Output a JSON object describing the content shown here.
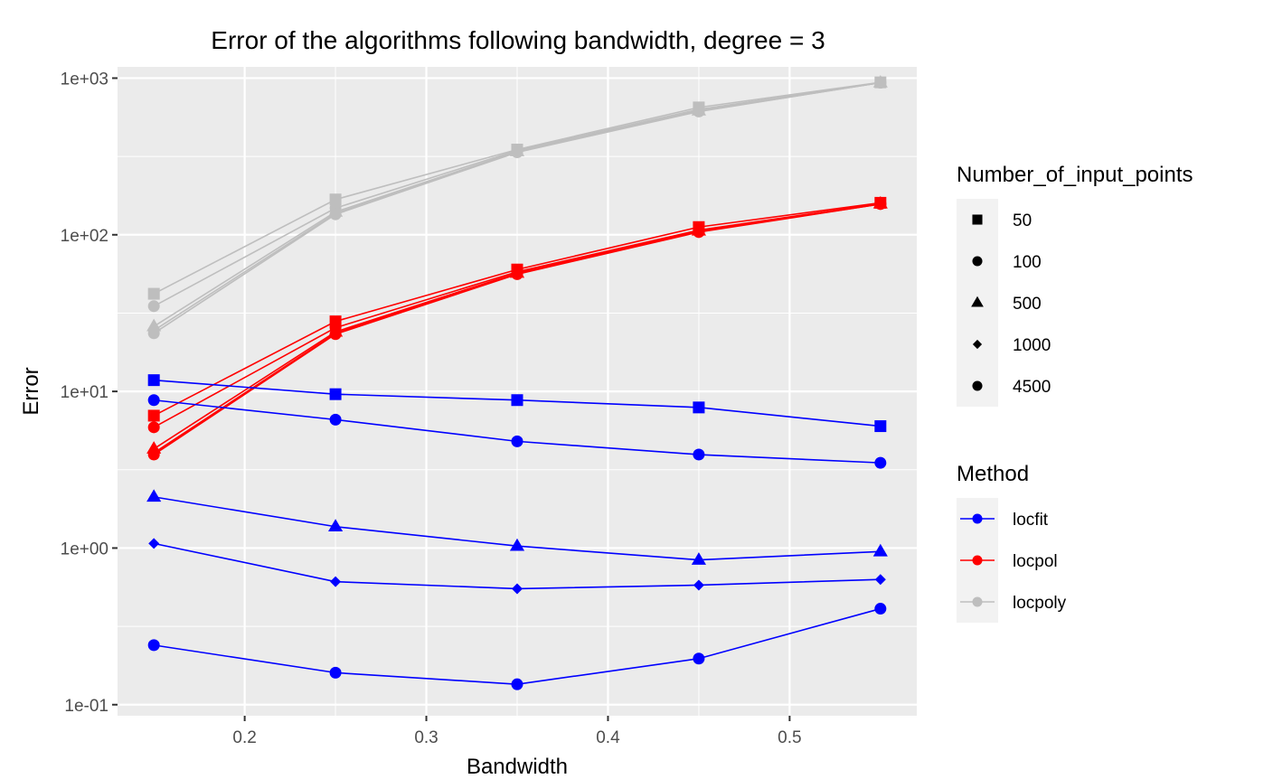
{
  "chart_data": {
    "type": "line",
    "title": "Error of the algorithms following bandwidth, degree = 3",
    "xlabel": "Bandwidth",
    "ylabel": "Error",
    "xlim": [
      0.13,
      0.57
    ],
    "ylim": [
      0.085,
      1180
    ],
    "y_scale": "log10",
    "grid": true,
    "legend_position": "right",
    "x_ticks": [
      {
        "value": 0.2,
        "label": "0.2"
      },
      {
        "value": 0.3,
        "label": "0.3"
      },
      {
        "value": 0.4,
        "label": "0.4"
      },
      {
        "value": 0.5,
        "label": "0.5"
      }
    ],
    "y_ticks": [
      {
        "value": 0.1,
        "label": "1e-01"
      },
      {
        "value": 1,
        "label": "1e+00"
      },
      {
        "value": 10,
        "label": "1e+01"
      },
      {
        "value": 100,
        "label": "1e+02"
      },
      {
        "value": 1000,
        "label": "1e+03"
      }
    ],
    "x": [
      0.15,
      0.25,
      0.35,
      0.45,
      0.55
    ],
    "colors": {
      "locfit": "#0000ff",
      "locpol": "#ff0000",
      "locpoly": "#bebebe",
      "panel_background": "#ebebeb",
      "legend_key_background": "#f2f2f2"
    },
    "shape_legend": {
      "title": "Number_of_input_points",
      "items": [
        {
          "label": "50",
          "shape": "square"
        },
        {
          "label": "100",
          "shape": "circle"
        },
        {
          "label": "500",
          "shape": "triangle"
        },
        {
          "label": "1000",
          "shape": "diamond"
        },
        {
          "label": "4500",
          "shape": "circle"
        }
      ]
    },
    "color_legend": {
      "title": "Method",
      "items": [
        {
          "label": "locfit",
          "color": "#0000ff"
        },
        {
          "label": "locpol",
          "color": "#ff0000"
        },
        {
          "label": "locpoly",
          "color": "#bebebe"
        }
      ]
    },
    "series": [
      {
        "method": "locpoly",
        "points": "50",
        "shape": "square",
        "values": [
          42,
          168,
          350,
          650,
          940
        ]
      },
      {
        "method": "locpoly",
        "points": "100",
        "shape": "circle",
        "values": [
          35,
          148,
          345,
          632,
          935
        ]
      },
      {
        "method": "locpoly",
        "points": "500",
        "shape": "triangle",
        "values": [
          26,
          140,
          340,
          620,
          935
        ]
      },
      {
        "method": "locpoly",
        "points": "1000",
        "shape": "diamond",
        "values": [
          24.5,
          137,
          338,
          615,
          935
        ]
      },
      {
        "method": "locpoly",
        "points": "4500",
        "shape": "circle",
        "values": [
          23.5,
          135,
          336,
          612,
          935
        ]
      },
      {
        "method": "locpol",
        "points": "50",
        "shape": "square",
        "values": [
          7,
          28,
          60,
          112,
          160
        ]
      },
      {
        "method": "locpol",
        "points": "100",
        "shape": "circle",
        "values": [
          5.9,
          25.5,
          58,
          107,
          158
        ]
      },
      {
        "method": "locpol",
        "points": "500",
        "shape": "triangle",
        "values": [
          4.3,
          24,
          57,
          106,
          158
        ]
      },
      {
        "method": "locpol",
        "points": "1000",
        "shape": "diamond",
        "values": [
          4.05,
          23.5,
          56.5,
          105,
          157
        ]
      },
      {
        "method": "locpol",
        "points": "4500",
        "shape": "circle",
        "values": [
          3.95,
          23.2,
          56,
          104,
          157
        ]
      },
      {
        "method": "locfit",
        "points": "50",
        "shape": "square",
        "values": [
          11.8,
          9.6,
          8.8,
          7.9,
          6.0
        ]
      },
      {
        "method": "locfit",
        "points": "100",
        "shape": "circle",
        "values": [
          8.8,
          6.6,
          4.8,
          3.95,
          3.5
        ]
      },
      {
        "method": "locfit",
        "points": "500",
        "shape": "triangle",
        "values": [
          2.12,
          1.37,
          1.03,
          0.84,
          0.95
        ]
      },
      {
        "method": "locfit",
        "points": "1000",
        "shape": "diamond",
        "values": [
          1.07,
          0.61,
          0.55,
          0.58,
          0.63
        ]
      },
      {
        "method": "locfit",
        "points": "4500",
        "shape": "circle",
        "values": [
          0.24,
          0.16,
          0.135,
          0.197,
          0.41
        ]
      }
    ]
  }
}
